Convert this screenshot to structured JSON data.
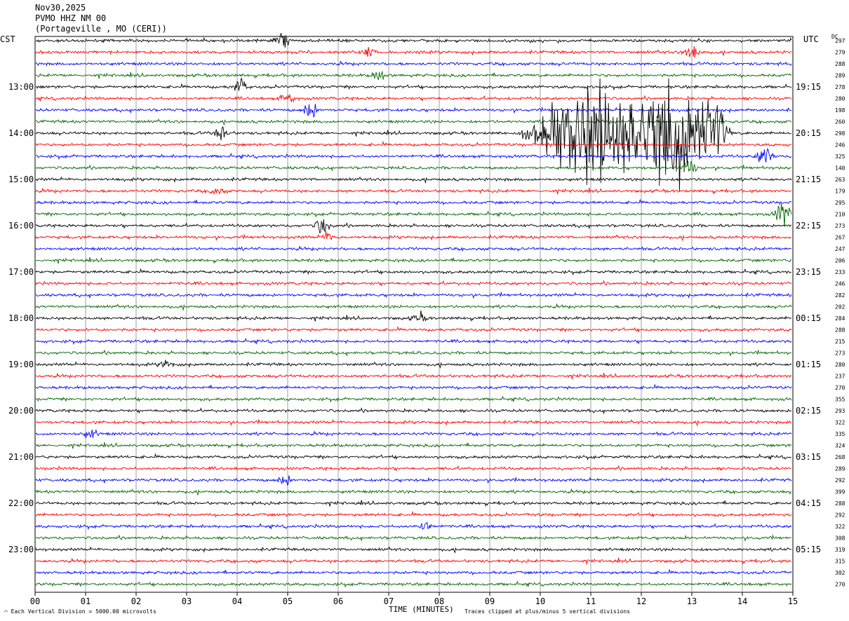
{
  "header": {
    "date": "Nov30,2025",
    "station": "PVMO HHZ NM 00",
    "location": "(Portageville , MO (CERI))"
  },
  "left_tz": "CST",
  "right_tz": "UTC",
  "dc_label": "DC",
  "footer": {
    "scale_note": "Each Vertical Division = 5000.00 microvolts",
    "clip_note": "Traces clipped at plus/minus 5 vertical divisions"
  },
  "chart_data": {
    "type": "line",
    "title": "",
    "xlabel": "TIME (MINUTES)",
    "ylabel": "",
    "xlim": [
      0,
      15
    ],
    "x_ticks": [
      "00",
      "01",
      "02",
      "03",
      "04",
      "05",
      "06",
      "07",
      "08",
      "09",
      "10",
      "11",
      "12",
      "13",
      "14",
      "15"
    ],
    "left_hour_labels": [
      "13:00",
      "14:00",
      "15:00",
      "16:00",
      "17:00",
      "18:00",
      "19:00",
      "20:00",
      "21:00",
      "22:00",
      "23:00"
    ],
    "right_hour_labels": [
      "19:15",
      "20:15",
      "21:15",
      "22:15",
      "23:15",
      "00:15",
      "01:15",
      "02:15",
      "03:15",
      "04:15",
      "05:15"
    ],
    "trace_colors": [
      "#000000",
      "#ff0000",
      "#0000ff",
      "#006600"
    ],
    "dc_offsets": [
      297,
      279,
      288,
      289,
      278,
      280,
      198,
      260,
      298,
      246,
      325,
      140,
      263,
      179,
      295,
      210,
      273,
      267,
      247,
      206,
      233,
      246,
      282,
      202,
      284,
      288,
      215,
      273,
      280,
      237,
      270,
      355,
      293,
      322,
      335,
      324,
      268,
      289,
      292,
      399,
      288,
      292,
      322,
      308,
      319,
      315,
      302,
      270
    ],
    "events": [
      {
        "trace": 0,
        "minute": 4.9,
        "amplitude": 0.6
      },
      {
        "trace": 1,
        "minute": 6.6,
        "amplitude": 0.35
      },
      {
        "trace": 1,
        "minute": 13.0,
        "amplitude": 0.9
      },
      {
        "trace": 3,
        "minute": 6.8,
        "amplitude": 0.35
      },
      {
        "trace": 4,
        "minute": 4.05,
        "amplitude": 0.6
      },
      {
        "trace": 5,
        "minute": 5.0,
        "amplitude": 0.4
      },
      {
        "trace": 6,
        "minute": 5.45,
        "amplitude": 0.7
      },
      {
        "trace": 8,
        "minute": 3.7,
        "amplitude": 0.6
      },
      {
        "trace": 8,
        "minute": 12.0,
        "amplitude": 4.5
      },
      {
        "trace": 10,
        "minute": 14.45,
        "amplitude": 0.9
      },
      {
        "trace": 11,
        "minute": 12.95,
        "amplitude": 0.6
      },
      {
        "trace": 13,
        "minute": 3.6,
        "amplitude": 0.35
      },
      {
        "trace": 15,
        "minute": 14.8,
        "amplitude": 1.0
      },
      {
        "trace": 16,
        "minute": 5.7,
        "amplitude": 0.7
      },
      {
        "trace": 17,
        "minute": 5.8,
        "amplitude": 0.35
      },
      {
        "trace": 24,
        "minute": 7.6,
        "amplitude": 0.35
      },
      {
        "trace": 28,
        "minute": 2.6,
        "amplitude": 0.3
      },
      {
        "trace": 34,
        "minute": 1.1,
        "amplitude": 0.3
      },
      {
        "trace": 38,
        "minute": 4.95,
        "amplitude": 0.4
      },
      {
        "trace": 42,
        "minute": 7.7,
        "amplitude": 0.4
      }
    ]
  }
}
